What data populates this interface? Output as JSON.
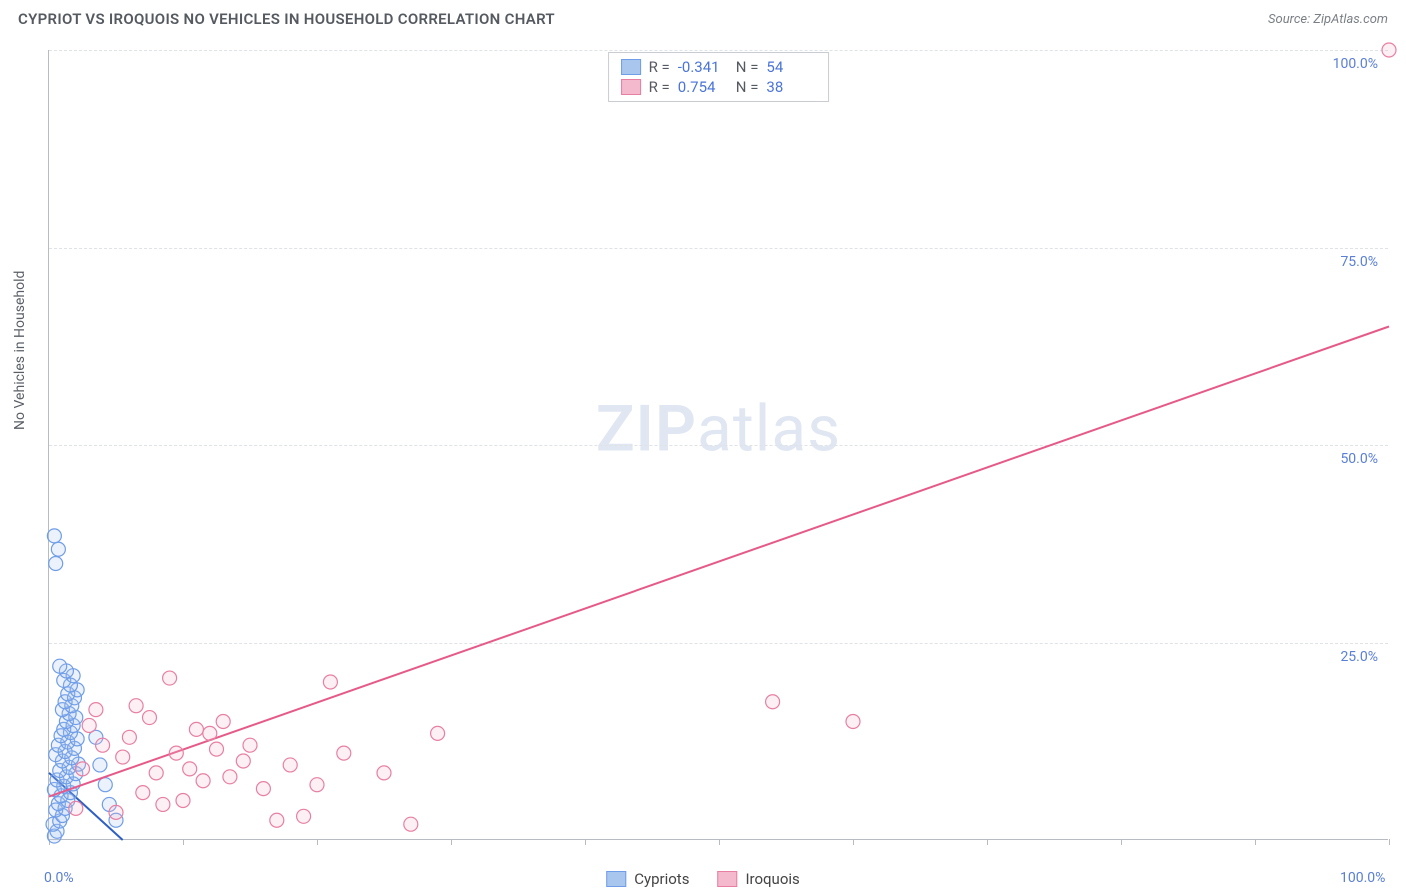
{
  "title": "CYPRIOT VS IROQUOIS NO VEHICLES IN HOUSEHOLD CORRELATION CHART",
  "source_label": "Source: ZipAtlas.com",
  "ylabel": "No Vehicles in Household",
  "watermark_a": "ZIP",
  "watermark_b": "atlas",
  "chart": {
    "type": "scatter",
    "xlim": [
      0,
      100
    ],
    "ylim": [
      0,
      100
    ],
    "x_ticks": [
      0,
      10,
      20,
      30,
      40,
      50,
      60,
      70,
      80,
      90,
      100
    ],
    "y_gridlines": [
      25,
      50,
      75,
      100
    ],
    "x_tick_labels": {
      "0": "0.0%",
      "100": "100.0%"
    },
    "y_tick_labels": {
      "25": "25.0%",
      "50": "50.0%",
      "75": "75.0%",
      "100": "100.0%"
    },
    "background_color": "#ffffff",
    "grid_color": "#dfe2e6",
    "axis_color": "#b8bcc2",
    "marker_radius": 7,
    "marker_stroke_width": 1.2,
    "marker_fill_opacity": 0.22,
    "line_width": 2,
    "series": [
      {
        "name": "Cypriots",
        "color_stroke": "#6f9de8",
        "color_fill": "#a9c6ef",
        "line_color": "#2d5fc4",
        "R": "-0.341",
        "N": "54",
        "trend": {
          "x1": 0,
          "y1": 8.5,
          "x2": 5.5,
          "y2": 0
        },
        "points": [
          [
            0.4,
            0.5
          ],
          [
            0.6,
            1.1
          ],
          [
            0.3,
            2.0
          ],
          [
            0.8,
            2.4
          ],
          [
            1.0,
            3.1
          ],
          [
            0.5,
            3.8
          ],
          [
            1.2,
            4.0
          ],
          [
            0.7,
            4.6
          ],
          [
            1.4,
            5.0
          ],
          [
            0.9,
            5.6
          ],
          [
            1.6,
            6.0
          ],
          [
            0.4,
            6.4
          ],
          [
            1.1,
            6.8
          ],
          [
            1.8,
            7.1
          ],
          [
            0.6,
            7.6
          ],
          [
            1.3,
            8.0
          ],
          [
            2.0,
            8.4
          ],
          [
            0.8,
            8.8
          ],
          [
            1.5,
            9.2
          ],
          [
            2.2,
            9.6
          ],
          [
            1.0,
            10.0
          ],
          [
            1.7,
            10.4
          ],
          [
            0.5,
            10.8
          ],
          [
            1.2,
            11.2
          ],
          [
            1.9,
            11.6
          ],
          [
            0.7,
            12.0
          ],
          [
            1.4,
            12.4
          ],
          [
            2.1,
            12.8
          ],
          [
            0.9,
            13.2
          ],
          [
            1.6,
            13.6
          ],
          [
            1.1,
            14.0
          ],
          [
            1.8,
            14.5
          ],
          [
            1.3,
            15.0
          ],
          [
            2.0,
            15.5
          ],
          [
            1.5,
            16.0
          ],
          [
            1.0,
            16.5
          ],
          [
            1.7,
            17.0
          ],
          [
            1.2,
            17.5
          ],
          [
            1.9,
            18.0
          ],
          [
            1.4,
            18.5
          ],
          [
            2.1,
            19.0
          ],
          [
            1.6,
            19.6
          ],
          [
            1.1,
            20.2
          ],
          [
            1.8,
            20.8
          ],
          [
            1.3,
            21.4
          ],
          [
            0.8,
            22.0
          ],
          [
            0.5,
            35.0
          ],
          [
            0.7,
            36.8
          ],
          [
            0.4,
            38.5
          ],
          [
            4.5,
            4.5
          ],
          [
            4.2,
            7.0
          ],
          [
            3.8,
            9.5
          ],
          [
            3.5,
            13.0
          ],
          [
            5.0,
            2.5
          ]
        ]
      },
      {
        "name": "Iroquois",
        "color_stroke": "#e87fa3",
        "color_fill": "#f4b9cd",
        "line_color": "#e65a8a",
        "R": "0.754",
        "N": "38",
        "trend": {
          "x1": 0,
          "y1": 5.5,
          "x2": 100,
          "y2": 65
        },
        "points": [
          [
            2.0,
            4.0
          ],
          [
            2.5,
            9.0
          ],
          [
            3.0,
            14.5
          ],
          [
            3.5,
            16.5
          ],
          [
            5.0,
            3.5
          ],
          [
            5.5,
            10.5
          ],
          [
            6.0,
            13.0
          ],
          [
            7.0,
            6.0
          ],
          [
            7.5,
            15.5
          ],
          [
            8.0,
            8.5
          ],
          [
            9.0,
            20.5
          ],
          [
            9.5,
            11.0
          ],
          [
            10.0,
            5.0
          ],
          [
            11.0,
            14.0
          ],
          [
            11.5,
            7.5
          ],
          [
            12.5,
            11.5
          ],
          [
            13.0,
            15.0
          ],
          [
            13.5,
            8.0
          ],
          [
            14.5,
            10.0
          ],
          [
            15.0,
            12.0
          ],
          [
            16.0,
            6.5
          ],
          [
            17.0,
            2.5
          ],
          [
            18.0,
            9.5
          ],
          [
            19.0,
            3.0
          ],
          [
            20.0,
            7.0
          ],
          [
            21.0,
            20.0
          ],
          [
            22.0,
            11.0
          ],
          [
            25.0,
            8.5
          ],
          [
            27.0,
            2.0
          ],
          [
            29.0,
            13.5
          ],
          [
            54.0,
            17.5
          ],
          [
            60.0,
            15.0
          ],
          [
            100.0,
            100.0
          ],
          [
            4.0,
            12.0
          ],
          [
            6.5,
            17.0
          ],
          [
            8.5,
            4.5
          ],
          [
            10.5,
            9.0
          ],
          [
            12.0,
            13.5
          ]
        ]
      }
    ]
  },
  "bottom_legend": [
    {
      "label": "Cypriots",
      "fill": "#a9c6ef",
      "stroke": "#6f9de8"
    },
    {
      "label": "Iroquois",
      "fill": "#f4b9cd",
      "stroke": "#e87fa3"
    }
  ]
}
